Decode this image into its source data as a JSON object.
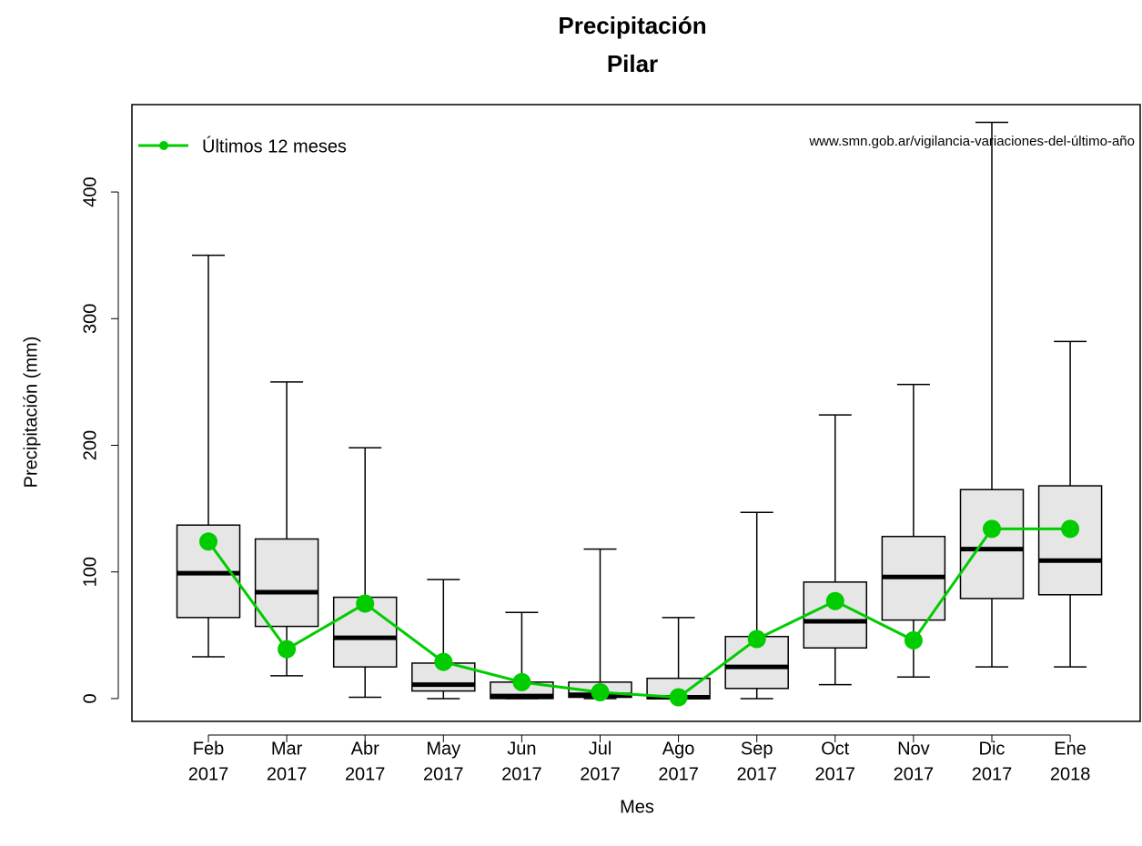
{
  "chart_data": {
    "type": "boxplot",
    "title": "Precipitación",
    "subtitle": "Pilar",
    "x_label": "Mes",
    "y_label": "Precipitación (mm)",
    "annotation": "www.smn.gob.ar/vigilancia-variaciones-del-último-año",
    "categories": [
      [
        "Feb",
        "2017"
      ],
      [
        "Mar",
        "2017"
      ],
      [
        "Abr",
        "2017"
      ],
      [
        "May",
        "2017"
      ],
      [
        "Jun",
        "2017"
      ],
      [
        "Jul",
        "2017"
      ],
      [
        "Ago",
        "2017"
      ],
      [
        "Sep",
        "2017"
      ],
      [
        "Oct",
        "2017"
      ],
      [
        "Nov",
        "2017"
      ],
      [
        "Dic",
        "2017"
      ],
      [
        "Ene",
        "2018"
      ]
    ],
    "boxes": [
      {
        "min": 33,
        "q1": 64,
        "median": 99,
        "q3": 137,
        "max": 350
      },
      {
        "min": 18,
        "q1": 57,
        "median": 84,
        "q3": 126,
        "max": 250
      },
      {
        "min": 1,
        "q1": 25,
        "median": 48,
        "q3": 80,
        "max": 198
      },
      {
        "min": 0,
        "q1": 6,
        "median": 11,
        "q3": 28,
        "max": 94
      },
      {
        "min": 0,
        "q1": 0,
        "median": 2,
        "q3": 13,
        "max": 68
      },
      {
        "min": 0,
        "q1": 1,
        "median": 3,
        "q3": 13,
        "max": 118
      },
      {
        "min": 0,
        "q1": 0,
        "median": 1,
        "q3": 16,
        "max": 64
      },
      {
        "min": 0,
        "q1": 8,
        "median": 25,
        "q3": 49,
        "max": 147
      },
      {
        "min": 11,
        "q1": 40,
        "median": 61,
        "q3": 92,
        "max": 224
      },
      {
        "min": 17,
        "q1": 62,
        "median": 96,
        "q3": 128,
        "max": 248
      },
      {
        "min": 25,
        "q1": 79,
        "median": 118,
        "q3": 165,
        "max": 455
      },
      {
        "min": 25,
        "q1": 82,
        "median": 109,
        "q3": 168,
        "max": 282
      }
    ],
    "box_color": "#e6e6e6",
    "series": [
      {
        "name": "Últimos 12 meses",
        "color": "#00cc00",
        "values": [
          124,
          39,
          75,
          29,
          13,
          5,
          1,
          47,
          77,
          46,
          134,
          134
        ]
      }
    ],
    "ylim": [
      -18,
      469
    ],
    "yticks": [
      0,
      100,
      200,
      300,
      400
    ],
    "legend": "top-left"
  }
}
